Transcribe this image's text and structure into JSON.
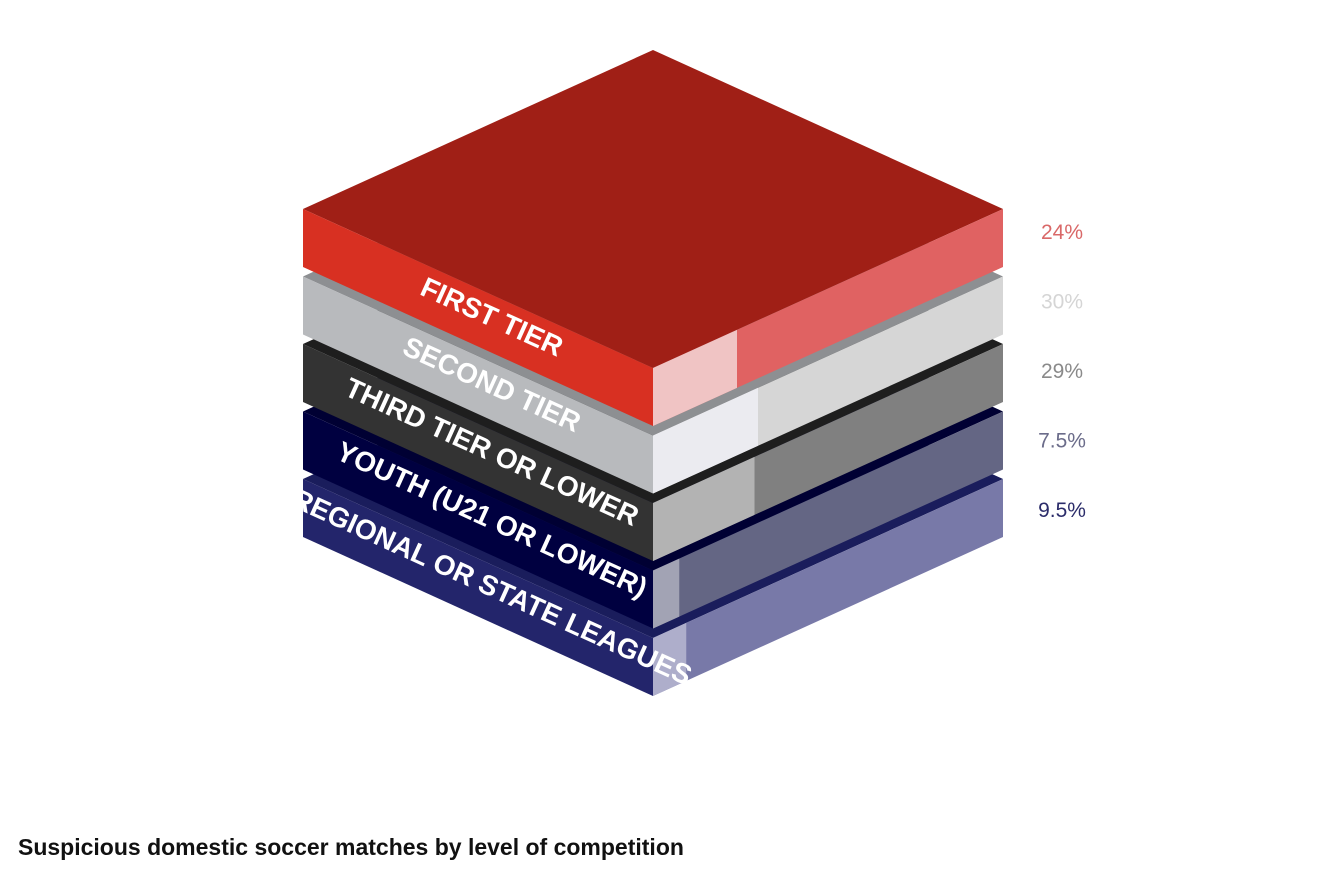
{
  "chart_data": {
    "type": "bar",
    "title": "Suspicious domestic soccer matches by level of competition",
    "categories": [
      "FIRST TIER",
      "SECOND TIER",
      "THIRD TIER OR LOWER",
      "YOUTH (U21 OR LOWER)",
      "REGIONAL OR STATE LEAGUES"
    ],
    "values": [
      24,
      30,
      29,
      7.5,
      9.5
    ],
    "value_labels": [
      "24%",
      "30%",
      "29%",
      "7.5%",
      "9.5%"
    ],
    "series": [
      {
        "category": "FIRST TIER",
        "value_label": "24%",
        "colors": {
          "top": "#a01f16",
          "left": "#d83022",
          "right": "#e06262",
          "right_light": "#f0c4c4",
          "label": "#d96868"
        }
      },
      {
        "category": "SECOND TIER",
        "value_label": "30%",
        "colors": {
          "top": "#8d8f92",
          "left": "#b8babd",
          "right": "#d6d6d6",
          "right_light": "#ebebf0",
          "label": "#d5d5d5"
        }
      },
      {
        "category": "THIRD TIER OR LOWER",
        "value_label": "29%",
        "colors": {
          "top": "#1e1e1e",
          "left": "#333333",
          "right": "#808080",
          "right_light": "#b3b3b3",
          "label": "#8a8a8a"
        }
      },
      {
        "category": "YOUTH (U21 OR LOWER)",
        "value_label": "7.5%",
        "colors": {
          "top": "#000033",
          "left": "#000040",
          "right": "#646684",
          "right_light": "#a2a3b4",
          "label": "#6b6c8a"
        }
      },
      {
        "category": "REGIONAL OR STATE LEAGUES",
        "value_label": "9.5%",
        "colors": {
          "top": "#1a1d5c",
          "left": "#23256b",
          "right": "#7879a8",
          "right_light": "#aeaecb",
          "label": "#2b2c6a"
        }
      }
    ]
  }
}
